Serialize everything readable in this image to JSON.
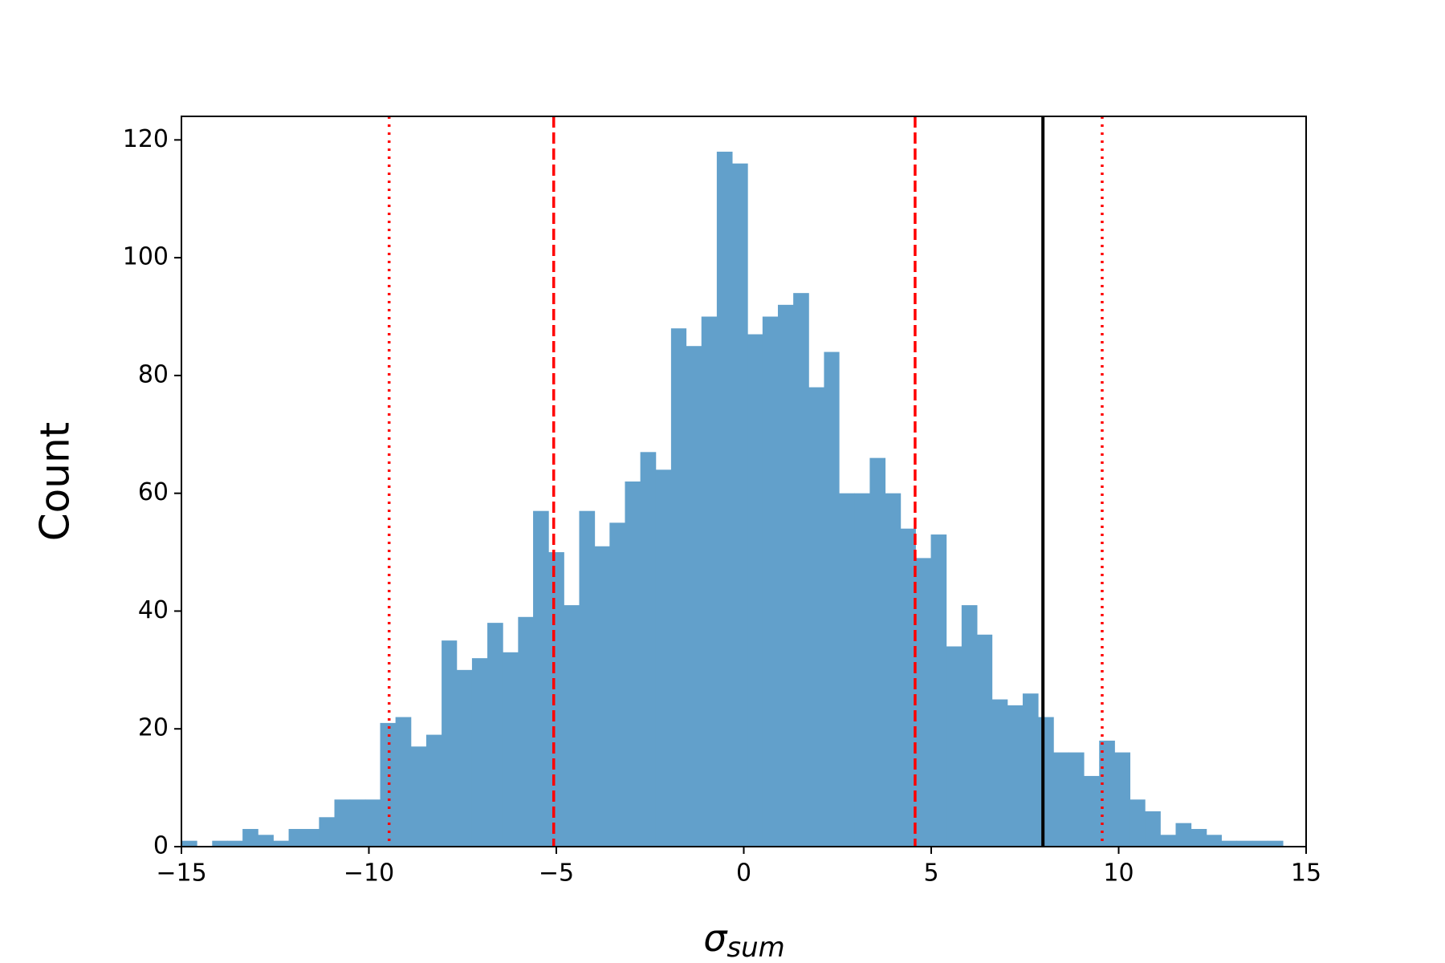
{
  "chart_data": {
    "type": "histogram",
    "xlabel": {
      "symbol": "σ",
      "subscript": "sum"
    },
    "ylabel": "Count",
    "color": "#62a0cb",
    "bins": [
      -15.0,
      -14.59,
      -14.18,
      -13.78,
      -13.37,
      -12.96,
      -12.55,
      -12.14,
      -11.74,
      -11.33,
      -10.92,
      -10.51,
      -10.1,
      -9.7,
      -9.29,
      -8.88,
      -8.47,
      -8.06,
      -7.66,
      -7.25,
      -6.84,
      -6.43,
      -6.02,
      -5.62,
      -5.21,
      -4.8,
      -4.39,
      -3.98,
      -3.58,
      -3.17,
      -2.76,
      -2.35,
      -1.94,
      -1.54,
      -1.13,
      -0.72,
      -0.31,
      0.1,
      0.5,
      0.91,
      1.32,
      1.73,
      2.14,
      2.54,
      2.95,
      3.36,
      3.77,
      4.18,
      4.58,
      4.99,
      5.4,
      5.81,
      6.22,
      6.62,
      7.03,
      7.44,
      7.85,
      8.26,
      8.66,
      9.07,
      9.48,
      9.89,
      10.3,
      10.7,
      11.11,
      11.52,
      11.93,
      12.34,
      12.74,
      13.15,
      13.56,
      13.97,
      14.38
    ],
    "counts": [
      1,
      0,
      1,
      1,
      3,
      2,
      1,
      3,
      3,
      5,
      8,
      8,
      8,
      21,
      22,
      17,
      19,
      35,
      30,
      32,
      38,
      33,
      39,
      57,
      50,
      41,
      57,
      51,
      55,
      62,
      67,
      64,
      88,
      85,
      90,
      118,
      116,
      87,
      90,
      92,
      94,
      78,
      84,
      60,
      60,
      66,
      60,
      54,
      49,
      53,
      34,
      41,
      36,
      25,
      24,
      26,
      22,
      16,
      16,
      12,
      18,
      16,
      8,
      6,
      2,
      4,
      3,
      2,
      1,
      1,
      1,
      1
    ],
    "reference_lines": [
      {
        "value": -9.46,
        "color": "#ff0000",
        "style": "dotted"
      },
      {
        "value": -5.07,
        "color": "#ff0000",
        "style": "dashed"
      },
      {
        "value": 4.57,
        "color": "#ff0000",
        "style": "dashed"
      },
      {
        "value": 7.98,
        "color": "#000000",
        "style": "solid"
      },
      {
        "value": 9.56,
        "color": "#ff0000",
        "style": "dotted"
      }
    ],
    "xlim": [
      -15,
      15
    ],
    "ylim": [
      0,
      124
    ],
    "xticks": [
      {
        "value": -15,
        "label": "−15"
      },
      {
        "value": -10,
        "label": "−10"
      },
      {
        "value": -5,
        "label": "−5"
      },
      0,
      5,
      10,
      15
    ],
    "yticks": [
      0,
      20,
      40,
      60,
      80,
      100,
      120
    ]
  }
}
